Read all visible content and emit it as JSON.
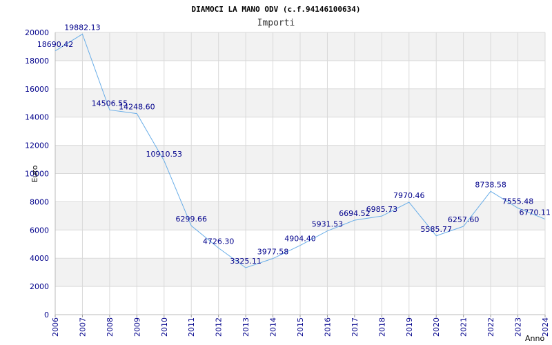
{
  "colors": {
    "band": "#f2f2f2",
    "grid": "#d9d9d9",
    "line": "#6aaee8",
    "tick_text": "#00008b"
  },
  "chart_data": {
    "type": "line",
    "title": "DIAMOCI LA MANO ODV (c.f.94146100634)",
    "subtitle": "Importi",
    "ylabel": "Euro",
    "xlabel": "Anno",
    "ylim": [
      0,
      20000
    ],
    "yticks": [
      "0",
      "2000",
      "4000",
      "6000",
      "8000",
      "10000",
      "12000",
      "14000",
      "16000",
      "18000",
      "20000"
    ],
    "grid": true,
    "x": [
      "2006",
      "2007",
      "2008",
      "2009",
      "2010",
      "2011",
      "2012",
      "2013",
      "2014",
      "2015",
      "2016",
      "2017",
      "2018",
      "2019",
      "2020",
      "2021",
      "2022",
      "2023",
      "2024"
    ],
    "series": [
      {
        "values": [
          18690.42,
          19882.13,
          14506.55,
          14248.6,
          10910.53,
          6299.66,
          4726.3,
          3325.11,
          3977.58,
          4904.4,
          5931.53,
          6694.52,
          6985.73,
          7970.46,
          5585.77,
          6257.6,
          8738.58,
          7555.48,
          6770.11
        ],
        "labels": [
          "18690.42",
          "19882.13",
          "14506.55",
          "14248.60",
          "10910.53",
          "6299.66",
          "4726.30",
          "3325.11",
          "3977.58",
          "4904.40",
          "5931.53",
          "6694.52",
          "6985.73",
          "7970.46",
          "5585.77",
          "6257.60",
          "8738.58",
          "7555.48",
          "6770.11"
        ]
      }
    ]
  }
}
